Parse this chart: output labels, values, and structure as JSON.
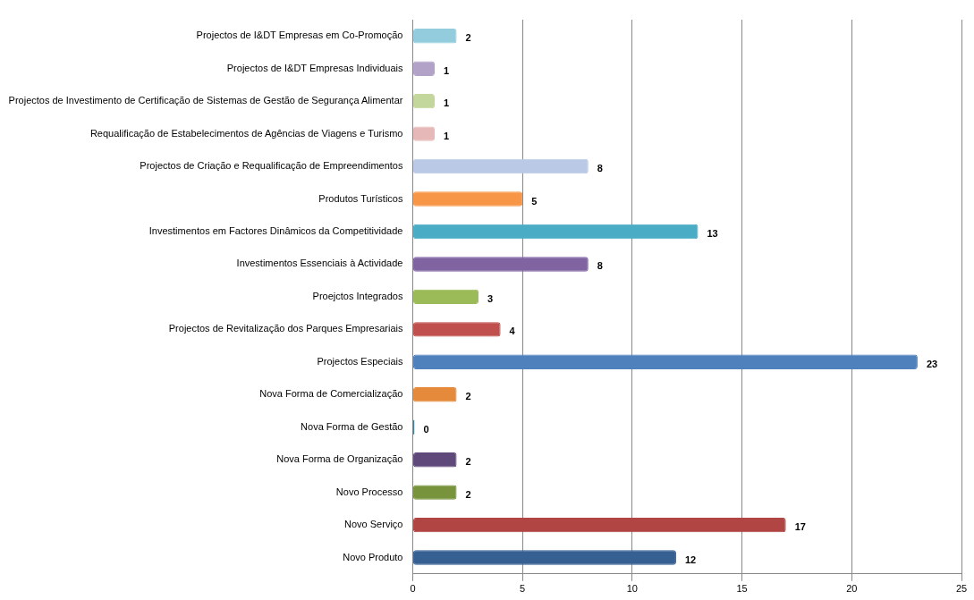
{
  "chart_data": {
    "type": "bar",
    "orientation": "horizontal",
    "categories": [
      "Projectos de I&DT Empresas em Co-Promoção",
      "Projectos de I&DT Empresas Individuais",
      "Projectos de Investimento de Certificação de Sistemas de Gestão de Segurança Alimentar",
      "Requalificação de Estabelecimentos de Agências de Viagens e Turismo",
      "Projectos de Criação e Requalificação de Empreendimentos",
      "Produtos Turísticos",
      "Investimentos em Factores Dinâmicos da Competitividade",
      "Investimentos Essenciais à Actividade",
      "Proejctos Integrados",
      "Projectos de Revitalização dos Parques Empresariais",
      "Projectos Especiais",
      "Nova Forma de Comercialização",
      "Nova Forma de Gestão",
      "Nova Forma de Organização",
      "Novo Processo",
      "Novo Serviço",
      "Novo Produto"
    ],
    "values": [
      2,
      1,
      1,
      1,
      8,
      5,
      13,
      8,
      3,
      4,
      23,
      2,
      0,
      2,
      2,
      17,
      12
    ],
    "colors": [
      "#93cddd",
      "#b3a2c7",
      "#c3d69b",
      "#e6b9b8",
      "#b9c9e6",
      "#f79646",
      "#4bacc6",
      "#8064a2",
      "#9bbb59",
      "#c0504d",
      "#4f81bd",
      "#e48a3a",
      "#31859c",
      "#5f497a",
      "#77933c",
      "#b04544",
      "#376092"
    ],
    "xlim": [
      0,
      25
    ],
    "xticks": [
      0,
      5,
      10,
      15,
      20,
      25
    ],
    "grid": "x",
    "data_labels": true,
    "legend": false
  }
}
